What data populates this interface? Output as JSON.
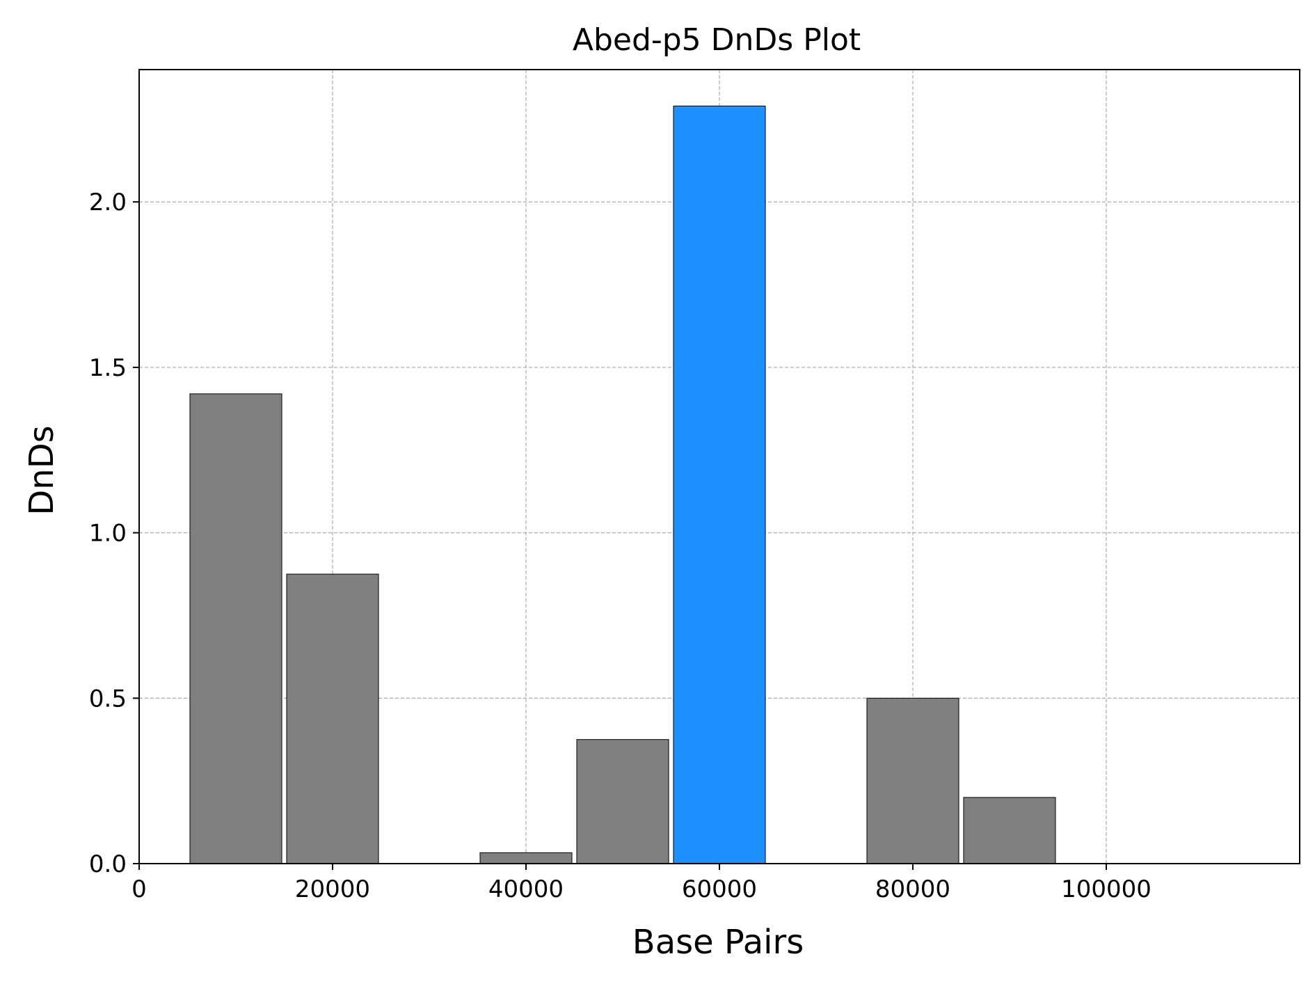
{
  "chart_data": {
    "type": "bar",
    "title": "Abed-p5 DnDs Plot",
    "xlabel": "Base Pairs",
    "ylabel": "DnDs",
    "xlim": [
      0,
      120000
    ],
    "ylim": [
      0,
      2.4
    ],
    "x_ticks": [
      0,
      20000,
      40000,
      60000,
      80000,
      100000
    ],
    "x_tick_labels": [
      "0",
      "20000",
      "40000",
      "60000",
      "80000",
      "100000"
    ],
    "y_ticks": [
      0.0,
      0.5,
      1.0,
      1.5,
      2.0
    ],
    "y_tick_labels": [
      "0.0",
      "0.5",
      "1.0",
      "1.5",
      "2.0"
    ],
    "bar_width": 9500,
    "bars": [
      {
        "x": 10000,
        "value": 1.42,
        "highlight": false
      },
      {
        "x": 20000,
        "value": 0.875,
        "highlight": false
      },
      {
        "x": 40000,
        "value": 0.033,
        "highlight": false
      },
      {
        "x": 50000,
        "value": 0.375,
        "highlight": false
      },
      {
        "x": 60000,
        "value": 2.29,
        "highlight": true
      },
      {
        "x": 80000,
        "value": 0.5,
        "highlight": false
      },
      {
        "x": 90000,
        "value": 0.2,
        "highlight": false
      }
    ],
    "grid": true,
    "legend": false,
    "colors": {
      "bar": "#808080",
      "highlight": "#1e90ff",
      "grid": "#b0b0b0",
      "edge": "#000000"
    }
  }
}
